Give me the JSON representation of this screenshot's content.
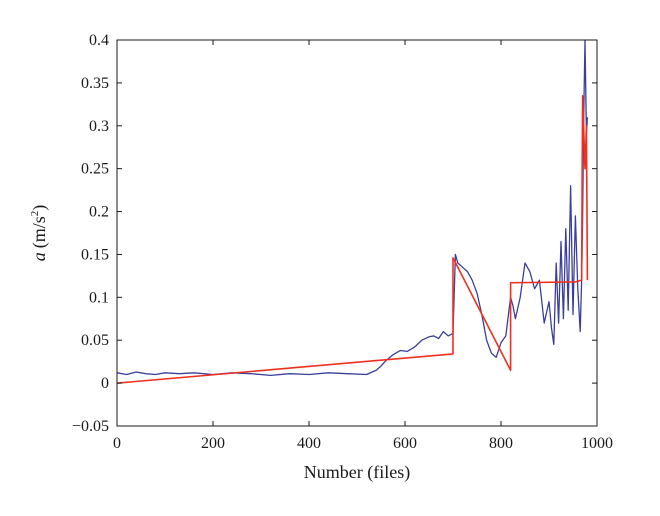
{
  "chart_data": {
    "type": "line",
    "xlabel": "Number (files)",
    "ylabel_var": "a",
    "ylabel_unit": "(m/s",
    "ylabel_exp": "2",
    "ylabel_close": ")",
    "xlim": [
      0,
      1000
    ],
    "ylim": [
      -0.05,
      0.4
    ],
    "xticks": [
      0,
      200,
      400,
      600,
      800,
      1000
    ],
    "yticks": [
      -0.05,
      0,
      0.05,
      0.1,
      0.15,
      0.2,
      0.25,
      0.3,
      0.35,
      0.4
    ],
    "xtick_labels": [
      "0",
      "200",
      "400",
      "600",
      "800",
      "1000"
    ],
    "ytick_labels": [
      "−0.05",
      "0",
      "0.05",
      "0.1",
      "0.15",
      "0.2",
      "0.25",
      "0.3",
      "0.35",
      "0.4"
    ],
    "grid": false,
    "legend": "none",
    "series": [
      {
        "color": "#3a3f9b",
        "x": [
          0,
          20,
          40,
          60,
          80,
          100,
          130,
          160,
          200,
          240,
          280,
          320,
          360,
          400,
          440,
          480,
          520,
          540,
          550,
          560,
          575,
          590,
          605,
          620,
          635,
          650,
          660,
          670,
          680,
          690,
          700,
          705,
          710,
          720,
          730,
          740,
          750,
          760,
          770,
          780,
          790,
          800,
          810,
          820,
          825,
          830,
          840,
          850,
          860,
          870,
          880,
          890,
          900,
          905,
          910,
          915,
          920,
          925,
          930,
          935,
          940,
          945,
          950,
          955,
          960,
          965,
          968,
          970,
          972,
          975,
          978,
          980
        ],
        "y": [
          0.012,
          0.01,
          0.013,
          0.011,
          0.01,
          0.012,
          0.011,
          0.012,
          0.01,
          0.012,
          0.011,
          0.009,
          0.011,
          0.01,
          0.012,
          0.011,
          0.01,
          0.015,
          0.02,
          0.026,
          0.033,
          0.038,
          0.037,
          0.042,
          0.05,
          0.054,
          0.055,
          0.052,
          0.06,
          0.055,
          0.058,
          0.15,
          0.14,
          0.135,
          0.13,
          0.12,
          0.105,
          0.08,
          0.05,
          0.035,
          0.03,
          0.047,
          0.055,
          0.1,
          0.09,
          0.075,
          0.1,
          0.14,
          0.13,
          0.11,
          0.12,
          0.07,
          0.095,
          0.065,
          0.045,
          0.14,
          0.07,
          0.165,
          0.075,
          0.18,
          0.085,
          0.23,
          0.08,
          0.195,
          0.11,
          0.06,
          0.12,
          0.19,
          0.3,
          0.4,
          0.29,
          0.31
        ]
      },
      {
        "color": "#f0301e",
        "x": [
          0,
          700,
          700,
          820,
          820,
          955,
          968,
          970,
          975,
          978,
          980
        ],
        "y": [
          0.0,
          0.034,
          0.146,
          0.015,
          0.117,
          0.118,
          0.12,
          0.335,
          0.25,
          0.3,
          0.12
        ]
      }
    ]
  }
}
